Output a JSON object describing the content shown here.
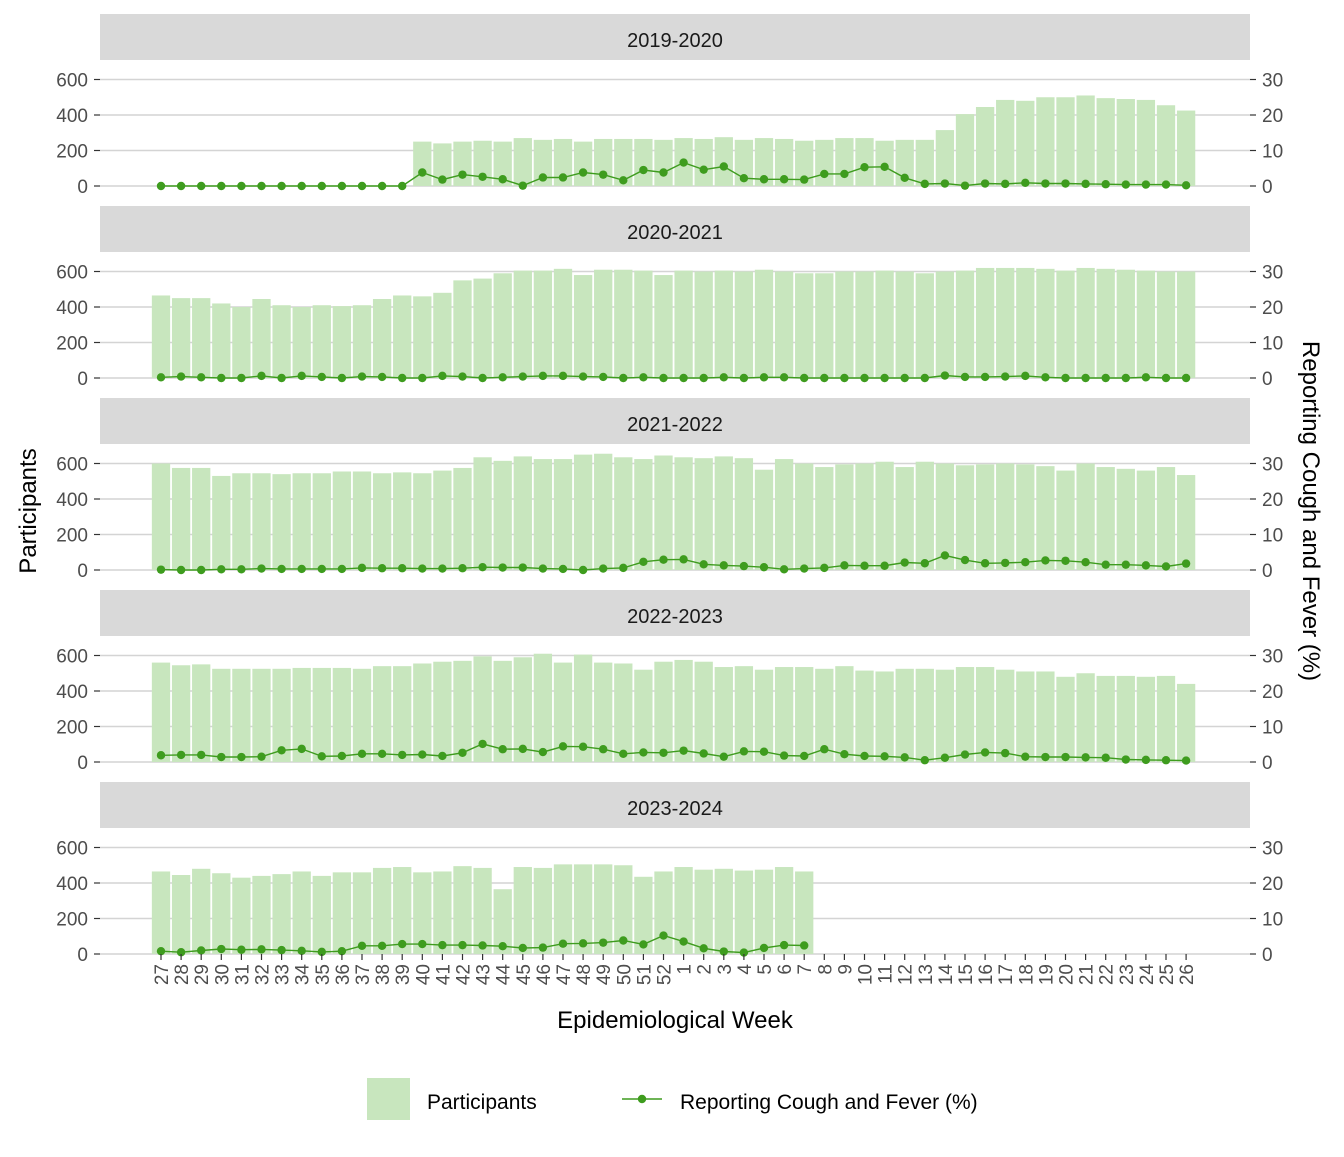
{
  "chart_data": {
    "type": "bar+line",
    "facet_type": "vertical-panels",
    "xlabel": "Epidemiological Week",
    "ylabel_left": "Participants",
    "ylabel_right": "Reporting Cough and Fever (%)",
    "ylim_left": [
      0,
      600
    ],
    "yticks_left": [
      0,
      200,
      400,
      600
    ],
    "ylim_right": [
      0,
      30
    ],
    "yticks_right": [
      0,
      10,
      20,
      30
    ],
    "grid": true,
    "legend_position": "bottom",
    "colors": {
      "bars": "#c8e6be",
      "line": "#3e9c1e",
      "strip": "#d9d9d9",
      "grid": "#d4d4d4"
    },
    "legend": [
      {
        "label": "Participants",
        "kind": "bar"
      },
      {
        "label": "Reporting Cough and Fever (%)",
        "kind": "line"
      }
    ],
    "categories": [
      "27",
      "28",
      "29",
      "30",
      "31",
      "32",
      "33",
      "34",
      "35",
      "36",
      "37",
      "38",
      "39",
      "40",
      "41",
      "42",
      "43",
      "44",
      "45",
      "46",
      "47",
      "48",
      "49",
      "50",
      "51",
      "52",
      "1",
      "2",
      "3",
      "4",
      "5",
      "6",
      "7",
      "8",
      "9",
      "10",
      "11",
      "12",
      "13",
      "14",
      "15",
      "16",
      "17",
      "18",
      "19",
      "20",
      "21",
      "22",
      "23",
      "24",
      "25",
      "26"
    ],
    "panels": [
      {
        "label": "2019-2020",
        "participants": [
          null,
          null,
          null,
          null,
          null,
          null,
          null,
          null,
          null,
          null,
          null,
          null,
          null,
          250,
          240,
          250,
          255,
          250,
          270,
          260,
          265,
          250,
          265,
          265,
          265,
          260,
          270,
          265,
          275,
          260,
          270,
          265,
          255,
          260,
          270,
          270,
          255,
          260,
          260,
          315,
          405,
          445,
          485,
          480,
          500,
          500,
          510,
          495,
          490,
          485,
          455,
          425
        ],
        "cough_fever_pct": [
          0,
          0,
          0,
          0,
          0,
          0,
          0,
          0,
          0,
          0,
          0,
          0,
          0,
          3.8,
          1.8,
          3.2,
          2.6,
          1.9,
          0.1,
          2.4,
          2.4,
          3.8,
          3.2,
          1.6,
          4.5,
          3.8,
          6.6,
          4.6,
          5.5,
          2.2,
          1.9,
          1.9,
          1.8,
          3.4,
          3.4,
          5.3,
          5.4,
          2.3,
          0.6,
          0.7,
          0.1,
          0.7,
          0.6,
          0.9,
          0.7,
          0.7,
          0.6,
          0.5,
          0.4,
          0.4,
          0.4,
          0.2
        ]
      },
      {
        "label": "2020-2021",
        "participants": [
          465,
          450,
          450,
          420,
          400,
          445,
          410,
          400,
          410,
          405,
          410,
          445,
          465,
          460,
          480,
          550,
          560,
          590,
          605,
          605,
          615,
          580,
          610,
          610,
          605,
          580,
          605,
          600,
          605,
          600,
          610,
          600,
          590,
          590,
          600,
          600,
          605,
          600,
          590,
          600,
          605,
          620,
          620,
          620,
          615,
          605,
          620,
          615,
          610,
          605,
          600,
          600
        ],
        "cough_fever_pct": [
          0.2,
          0.4,
          0.2,
          0,
          0,
          0.6,
          0,
          0.6,
          0.3,
          0,
          0.4,
          0.3,
          0,
          0,
          0.6,
          0.4,
          0,
          0.2,
          0.4,
          0.6,
          0.6,
          0.4,
          0.3,
          0,
          0.2,
          0,
          0,
          0,
          0.2,
          0,
          0.2,
          0.2,
          0,
          0,
          0,
          0,
          0,
          0,
          0,
          0.7,
          0.3,
          0.3,
          0.4,
          0.6,
          0.2,
          0,
          0,
          0,
          0,
          0.2,
          0,
          0
        ]
      },
      {
        "label": "2021-2022",
        "participants": [
          600,
          575,
          575,
          530,
          545,
          545,
          540,
          545,
          545,
          555,
          555,
          545,
          550,
          545,
          560,
          575,
          635,
          615,
          640,
          625,
          625,
          650,
          655,
          635,
          625,
          645,
          635,
          630,
          640,
          630,
          565,
          625,
          600,
          580,
          595,
          600,
          610,
          580,
          610,
          600,
          590,
          595,
          600,
          595,
          585,
          560,
          600,
          580,
          570,
          560,
          580,
          535
        ],
        "cough_fever_pct": [
          0.1,
          0,
          0,
          0.2,
          0.2,
          0.4,
          0.3,
          0.3,
          0.3,
          0.3,
          0.6,
          0.5,
          0.5,
          0.4,
          0.4,
          0.5,
          0.8,
          0.7,
          0.7,
          0.4,
          0.3,
          0,
          0.4,
          0.6,
          2.3,
          2.9,
          3,
          1.6,
          1.3,
          1.1,
          0.8,
          0.2,
          0.4,
          0.6,
          1.3,
          1.2,
          1.2,
          2.1,
          1.9,
          4.1,
          2.8,
          1.9,
          2,
          2.2,
          2.7,
          2.6,
          2.2,
          1.5,
          1.5,
          1.3,
          1,
          1.8
        ]
      },
      {
        "label": "2022-2023",
        "participants": [
          560,
          545,
          550,
          525,
          525,
          525,
          525,
          530,
          530,
          530,
          525,
          540,
          540,
          555,
          565,
          570,
          595,
          570,
          590,
          610,
          560,
          605,
          560,
          555,
          520,
          565,
          575,
          565,
          535,
          540,
          520,
          535,
          535,
          525,
          540,
          515,
          510,
          525,
          525,
          520,
          535,
          535,
          520,
          510,
          510,
          480,
          500,
          485,
          485,
          480,
          485,
          440
        ],
        "cough_fever_pct": [
          1.9,
          2,
          2,
          1.4,
          1.4,
          1.5,
          3.3,
          3.7,
          1.6,
          1.7,
          2.3,
          2.3,
          2,
          2.1,
          1.7,
          2.6,
          5.1,
          3.6,
          3.7,
          2.8,
          4.4,
          4.3,
          3.6,
          2.3,
          2.7,
          2.6,
          3.2,
          2.4,
          1.5,
          3,
          2.9,
          1.8,
          1.7,
          3.6,
          2.2,
          1.7,
          1.6,
          1.3,
          0.5,
          1.2,
          2.1,
          2.7,
          2.5,
          1.5,
          1.4,
          1.4,
          1.3,
          1.2,
          0.7,
          0.6,
          0.5,
          0.4
        ]
      },
      {
        "label": "2023-2024",
        "participants": [
          465,
          445,
          480,
          455,
          430,
          440,
          450,
          465,
          440,
          460,
          460,
          485,
          490,
          460,
          465,
          495,
          485,
          365,
          490,
          485,
          505,
          505,
          505,
          500,
          435,
          465,
          490,
          475,
          480,
          470,
          475,
          490,
          465,
          null,
          null,
          null,
          null,
          null,
          null,
          null,
          null,
          null,
          null,
          null,
          null,
          null,
          null,
          null,
          null,
          null,
          null,
          null
        ],
        "cough_fever_pct": [
          0.8,
          0.5,
          1,
          1.4,
          1.2,
          1.3,
          1.1,
          0.9,
          0.6,
          0.8,
          2.3,
          2.3,
          2.8,
          2.8,
          2.5,
          2.5,
          2.4,
          2.2,
          1.7,
          1.8,
          2.9,
          3,
          3.2,
          3.8,
          2.7,
          5.2,
          3.5,
          1.6,
          0.7,
          0.4,
          1.7,
          2.5,
          2.4,
          null,
          null,
          null,
          null,
          null,
          null,
          null,
          null,
          null,
          null,
          null,
          null,
          null,
          null,
          null,
          null,
          null,
          null,
          null
        ]
      }
    ]
  }
}
